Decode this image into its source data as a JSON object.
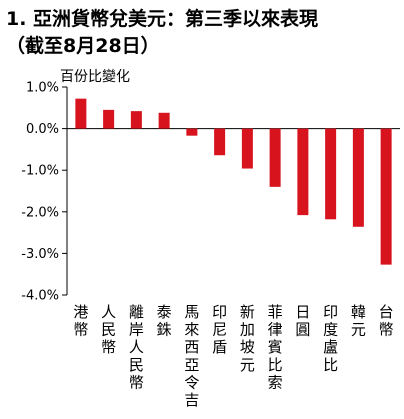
{
  "title": "1. 亞洲貨幣兌美元：第三季以來表現\n（截至8月28日）",
  "chart_data": {
    "type": "bar",
    "ylabel": "百份比變化",
    "categories": [
      "港幣",
      "人民幣",
      "離岸人民幣",
      "泰銖",
      "馬來西亞令吉",
      "印尼盾",
      "新加坡元",
      "菲律賓比索",
      "日圓",
      "印度盧比",
      "韓元",
      "台幣"
    ],
    "values": [
      0.72,
      0.45,
      0.42,
      0.38,
      -0.17,
      -0.64,
      -0.96,
      -1.4,
      -2.08,
      -2.18,
      -2.36,
      -3.27
    ],
    "ylim": [
      -4.0,
      1.0
    ],
    "yticks": [
      1.0,
      0.0,
      -1.0,
      -2.0,
      -3.0,
      -4.0
    ],
    "ytick_labels": [
      "1.0%",
      "0.0%",
      "-1.0%",
      "-2.0%",
      "-3.0%",
      "-4.0%"
    ],
    "bar_color": "#d7141e",
    "grid": false,
    "legend": "none"
  }
}
